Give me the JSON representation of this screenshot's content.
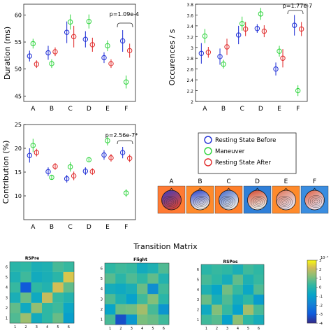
{
  "colors": {
    "before": "#1f2fd6",
    "maneuver": "#2bd43a",
    "after": "#e02a2a",
    "axis": "#222222"
  },
  "legend": {
    "before": "Resting State Before",
    "maneuver": "Maneuver",
    "after": "Resting State After"
  },
  "maps": {
    "letters": [
      "A",
      "B",
      "C",
      "D",
      "E",
      "F"
    ]
  },
  "transition_title": "Transition Matrix",
  "chart_data": [
    {
      "type": "scatter",
      "panel": "duration",
      "ylabel": "Duration (ms)",
      "ylim": [
        44,
        62
      ],
      "yticks": [
        45,
        50,
        55,
        60
      ],
      "categories": [
        "A",
        "B",
        "C",
        "D",
        "E",
        "F"
      ],
      "annotation": "p=1.09e-4",
      "series": [
        {
          "name": "Resting State Before",
          "values": [
            52.4,
            53.0,
            56.8,
            55.5,
            52.1,
            55.2
          ],
          "err": [
            1.0,
            1.3,
            2.0,
            1.5,
            1.0,
            2.0
          ]
        },
        {
          "name": "Maneuver",
          "values": [
            54.7,
            51.0,
            58.7,
            58.8,
            54.3,
            47.6
          ],
          "err": [
            0.9,
            0.8,
            1.4,
            1.3,
            1.0,
            1.2
          ]
        },
        {
          "name": "Resting State After",
          "values": [
            50.9,
            53.2,
            56.0,
            54.5,
            51.0,
            53.4
          ],
          "err": [
            0.7,
            0.8,
            2.0,
            1.3,
            0.8,
            1.3
          ]
        }
      ]
    },
    {
      "type": "scatter",
      "panel": "occurrences",
      "ylabel": "Occurences / s",
      "ylim": [
        2.0,
        3.8
      ],
      "yticks": [
        2.0,
        2.2,
        2.4,
        2.6,
        2.8,
        3.0,
        3.2,
        3.4,
        3.6,
        3.8
      ],
      "categories": [
        "A",
        "B",
        "C",
        "D",
        "E",
        "F"
      ],
      "annotation": "p=1.77e-7",
      "series": [
        {
          "name": "Resting State Before",
          "values": [
            2.89,
            2.83,
            3.23,
            3.35,
            2.6,
            3.41
          ],
          "err": [
            0.19,
            0.15,
            0.17,
            0.08,
            0.12,
            0.19
          ]
        },
        {
          "name": "Maneuver",
          "values": [
            3.21,
            2.69,
            3.44,
            3.62,
            2.93,
            2.2
          ],
          "err": [
            0.13,
            0.08,
            0.13,
            0.11,
            0.1,
            0.1
          ]
        },
        {
          "name": "Resting State After",
          "values": [
            2.91,
            3.01,
            3.34,
            3.3,
            2.8,
            3.34
          ],
          "err": [
            0.1,
            0.15,
            0.13,
            0.11,
            0.17,
            0.13
          ]
        }
      ]
    },
    {
      "type": "scatter",
      "panel": "contribution",
      "ylabel": "Contribution (%)",
      "ylim": [
        5,
        25
      ],
      "yticks": [
        10,
        15,
        20,
        25
      ],
      "categories": [
        "A",
        "B",
        "C",
        "D",
        "E",
        "F"
      ],
      "annotation": "p=2.56e-7*",
      "series": [
        {
          "name": "Resting State Before",
          "values": [
            18.5,
            15.1,
            13.6,
            15.2,
            18.6,
            19.1
          ],
          "err": [
            1.5,
            0.9,
            0.8,
            0.8,
            1.0,
            1.2
          ]
        },
        {
          "name": "Maneuver",
          "values": [
            20.6,
            13.9,
            16.1,
            17.6,
            21.6,
            10.6
          ],
          "err": [
            1.4,
            0.5,
            1.0,
            0.5,
            1.0,
            0.8
          ]
        },
        {
          "name": "Resting State After",
          "values": [
            19.1,
            16.2,
            14.2,
            15.1,
            18.0,
            17.9
          ],
          "err": [
            0.8,
            0.7,
            0.9,
            0.7,
            0.8,
            0.8
          ]
        }
      ]
    },
    {
      "type": "heatmap",
      "panel": "transition-rspre",
      "title": "RSPre",
      "xticks": [
        "1",
        "2",
        "3",
        "4",
        "5",
        "6"
      ],
      "yticks": [
        "1",
        "2",
        "3",
        "4",
        "5",
        "6"
      ],
      "values": [
        [
          0.6,
          1.5,
          -0.5,
          0.2,
          0.9,
          -1.0
        ],
        [
          0.8,
          -0.6,
          1.4,
          0.2,
          0.4,
          -0.7
        ],
        [
          -0.3,
          0.9,
          -0.6,
          2.0,
          0.3,
          -0.1
        ],
        [
          0.3,
          -3.0,
          0.2,
          -0.1,
          2.2,
          0.8
        ],
        [
          -0.2,
          0.4,
          -0.5,
          -0.3,
          0.1,
          2.3
        ],
        [
          0.1,
          0.2,
          -0.3,
          -0.2,
          0.5,
          0.3
        ]
      ]
    },
    {
      "type": "heatmap",
      "panel": "transition-flight",
      "title": "Flight",
      "xticks": [
        "1",
        "2",
        "3",
        "4",
        "5",
        "6"
      ],
      "yticks": [
        "1",
        "2",
        "3",
        "4",
        "5",
        "6"
      ],
      "values": [
        [
          0.5,
          -3.2,
          -1.2,
          1.1,
          0.9,
          0.4
        ],
        [
          -0.8,
          0.9,
          1.0,
          1.6,
          0.5,
          -1.3
        ],
        [
          0.6,
          -0.2,
          -0.9,
          0.4,
          1.2,
          0.1
        ],
        [
          -0.4,
          -0.6,
          -0.3,
          0.9,
          -1.5,
          0.4
        ],
        [
          0.7,
          0.1,
          0.6,
          0.2,
          0.8,
          -0.1
        ],
        [
          0.2,
          0.4,
          0.3,
          -0.5,
          -0.2,
          0.6
        ]
      ]
    },
    {
      "type": "heatmap",
      "panel": "transition-rspos",
      "title": "RSPos",
      "xticks": [
        "1",
        "2",
        "3",
        "4",
        "5",
        "6"
      ],
      "yticks": [
        "1",
        "2",
        "3",
        "4",
        "5",
        "6"
      ],
      "values": [
        [
          0.4,
          0.7,
          -0.9,
          1.3,
          0.2,
          -0.4
        ],
        [
          -0.6,
          1.2,
          0.3,
          -0.9,
          1.6,
          0.5
        ],
        [
          0.9,
          -0.3,
          0.6,
          -0.4,
          0.2,
          -1.1
        ],
        [
          -0.2,
          -0.8,
          1.0,
          0.3,
          -0.7,
          0.6
        ],
        [
          0.5,
          0.2,
          -0.4,
          0.8,
          -0.2,
          0.3
        ],
        [
          0.1,
          0.3,
          0.2,
          -0.3,
          0.4,
          0.2
        ]
      ]
    },
    {
      "type": "heatmap",
      "panel": "colorbar",
      "multiplier": "10⁻³",
      "ylim": [
        -4,
        3
      ],
      "yticks": [
        3,
        2,
        1,
        0,
        -1,
        -2,
        -3,
        -4
      ]
    }
  ]
}
